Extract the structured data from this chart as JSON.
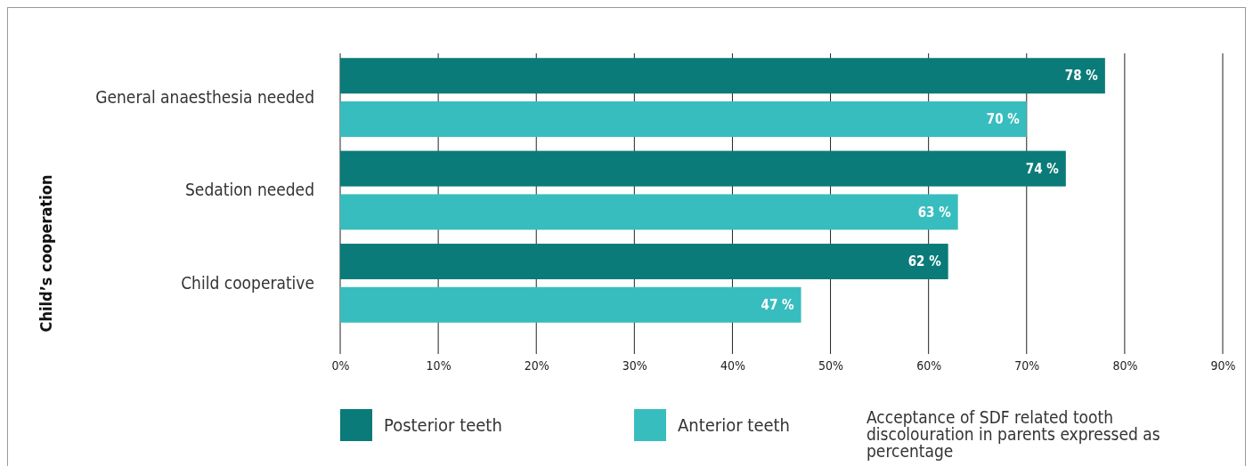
{
  "chart_data": {
    "type": "bar",
    "orientation": "horizontal",
    "ylabel": "Child’s cooperation",
    "categories": [
      "General anaesthesia needed",
      "Sedation needed",
      "Child cooperative"
    ],
    "series": [
      {
        "name": "Posterior teeth",
        "color": "#0a7b78",
        "values": [
          78,
          74,
          62
        ],
        "value_labels": [
          "78 %",
          "74 %",
          "62 %"
        ]
      },
      {
        "name": "Anterior teeth",
        "color": "#38bdbf",
        "values": [
          70,
          63,
          47
        ],
        "value_labels": [
          "70 %",
          "63 %",
          "47 %"
        ]
      }
    ],
    "xlim": [
      0,
      90
    ],
    "xticks": [
      {
        "value": 0,
        "label": "0%"
      },
      {
        "value": 10,
        "label": "10%"
      },
      {
        "value": 20,
        "label": "20%"
      },
      {
        "value": 30,
        "label": "30%"
      },
      {
        "value": 40,
        "label": "40%"
      },
      {
        "value": 50,
        "label": "50%"
      },
      {
        "value": 60,
        "label": "60%"
      },
      {
        "value": 70,
        "label": "70%"
      },
      {
        "value": 80,
        "label": "80%"
      },
      {
        "value": 90,
        "label": "90%"
      }
    ],
    "grid": "x",
    "legend": "bottom",
    "annotations": [
      "Acceptance of SDF related tooth discolouration in parents expressed as percentage"
    ]
  }
}
